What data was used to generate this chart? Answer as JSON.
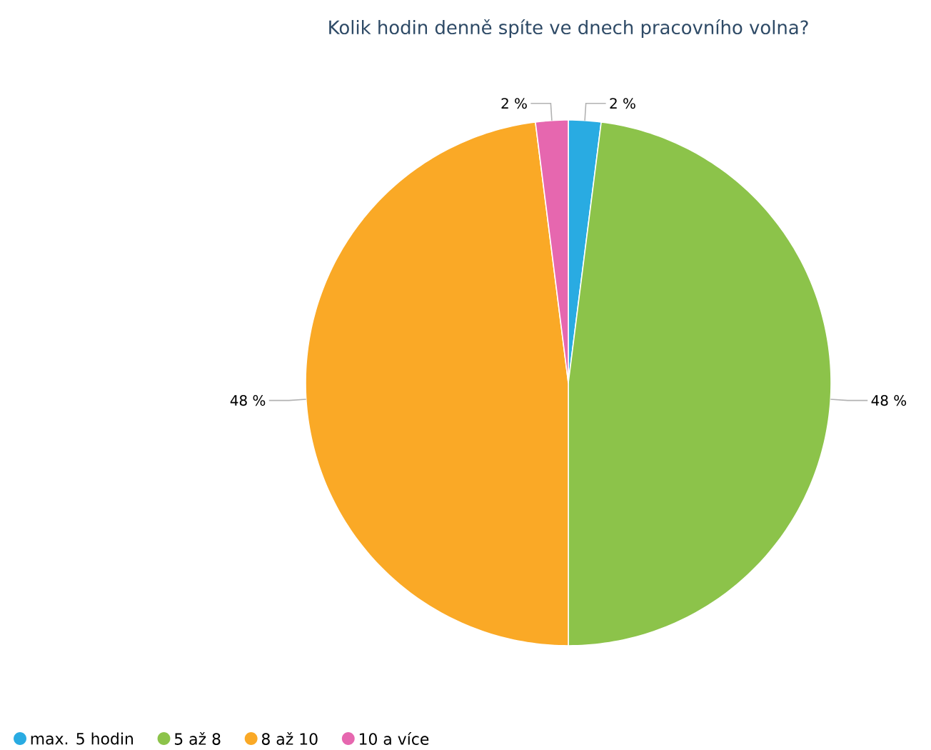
{
  "chart_data": {
    "type": "pie",
    "title": "Kolik hodin denně spíte ve dnech pracovního volna?",
    "categories": [
      "max. 5 hodin",
      "5 až 8",
      "8 až 10",
      "10 a více"
    ],
    "values": [
      2,
      48,
      48,
      2
    ],
    "value_labels": [
      "2 %",
      "48 %",
      "48 %",
      "2 %"
    ],
    "colors": [
      "#29abe2",
      "#8cc34a",
      "#faa926",
      "#e667af"
    ],
    "legend": "bottom left"
  }
}
